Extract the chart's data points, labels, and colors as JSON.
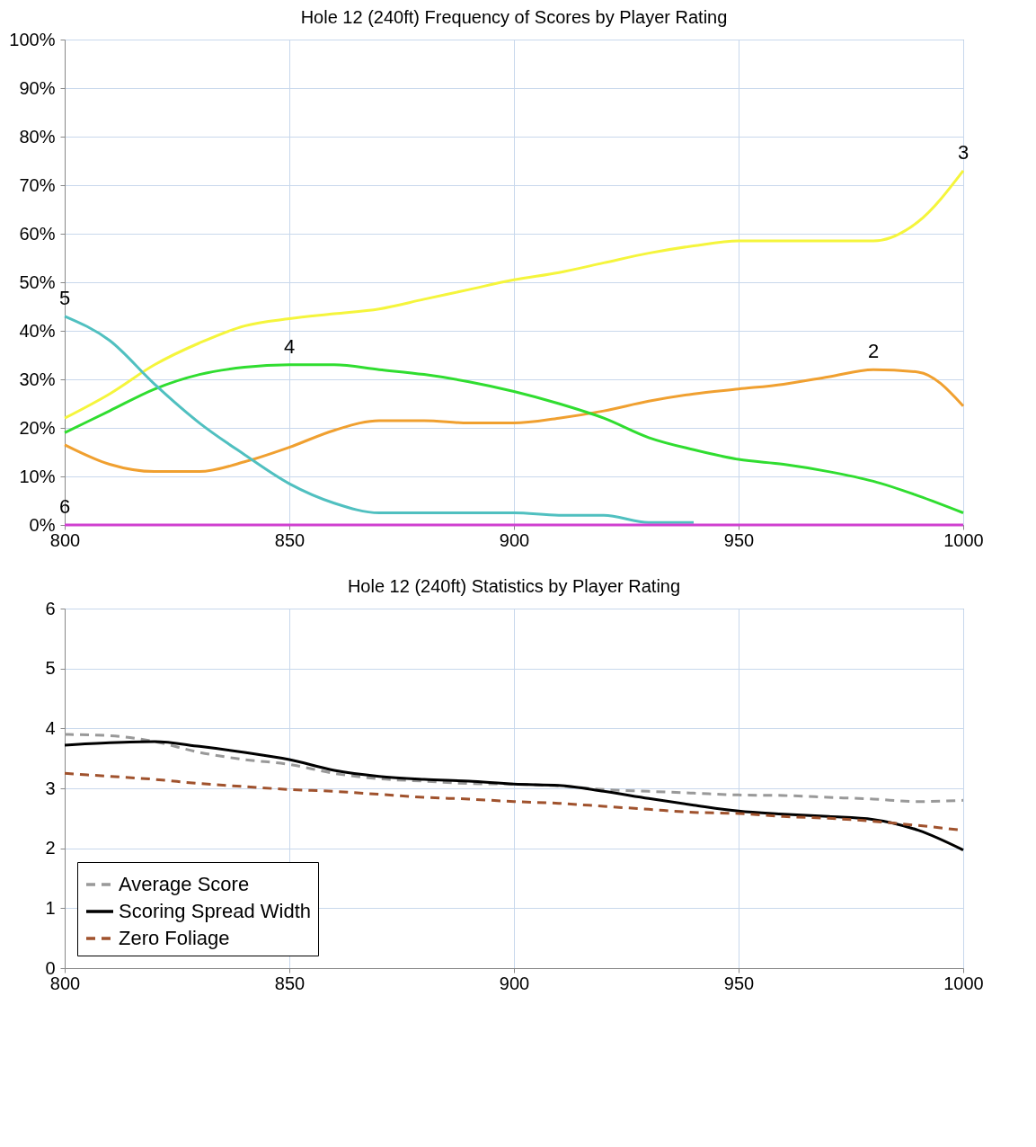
{
  "chart_data": [
    {
      "type": "line",
      "title": "Hole 12 (240ft) Frequency of Scores by Player Rating",
      "x": [
        800,
        810,
        820,
        830,
        840,
        850,
        860,
        870,
        880,
        890,
        900,
        910,
        920,
        930,
        940,
        950,
        960,
        970,
        980,
        990,
        1000
      ],
      "series": [
        {
          "name": "2",
          "color": "#f0a030",
          "values": [
            16.5,
            12.5,
            11,
            11,
            13,
            16,
            19.5,
            21.5,
            21.5,
            21,
            21,
            22,
            23.5,
            25.5,
            27,
            28,
            29,
            30.5,
            32,
            31.5,
            24.5
          ]
        },
        {
          "name": "3",
          "color": "#f5f53c",
          "values": [
            22,
            27,
            33,
            37.5,
            41,
            42.5,
            43.5,
            44.5,
            46.5,
            48.5,
            50.5,
            52,
            54,
            56,
            57.5,
            58.5,
            58.5,
            58.5,
            58.5,
            62.5,
            73
          ]
        },
        {
          "name": "4",
          "color": "#30dd30",
          "values": [
            19,
            23.5,
            28,
            31,
            32.5,
            33,
            33,
            32,
            31,
            29.5,
            27.5,
            25,
            22,
            18,
            15.5,
            13.5,
            12.5,
            11,
            9,
            6,
            2.5
          ]
        },
        {
          "name": "5",
          "color": "#50c0c0",
          "values": [
            43,
            38,
            29,
            21,
            14.5,
            8.5,
            4.5,
            2.5,
            2.5,
            2.5,
            2.5,
            2,
            2,
            0.5,
            0.5,
            null,
            null,
            null,
            null,
            null,
            null
          ]
        },
        {
          "name": "6",
          "color": "#d040d0",
          "values": [
            0,
            0,
            0,
            0,
            0,
            0,
            0,
            0,
            0,
            0,
            0,
            0,
            0,
            0,
            0,
            0,
            0,
            0,
            0,
            0,
            0
          ]
        }
      ],
      "xlim": [
        800,
        1000
      ],
      "xticks": [
        800,
        850,
        900,
        950,
        1000
      ],
      "ylim": [
        0,
        100
      ],
      "yticks": [
        {
          "value": 0,
          "label": "0%"
        },
        {
          "value": 10,
          "label": "10%"
        },
        {
          "value": 20,
          "label": "20%"
        },
        {
          "value": 30,
          "label": "30%"
        },
        {
          "value": 40,
          "label": "40%"
        },
        {
          "value": 50,
          "label": "50%"
        },
        {
          "value": 60,
          "label": "60%"
        },
        {
          "value": 70,
          "label": "70%"
        },
        {
          "value": 80,
          "label": "80%"
        },
        {
          "value": 90,
          "label": "90%"
        },
        {
          "value": 100,
          "label": "100%"
        }
      ],
      "grid": true,
      "legend": false
    },
    {
      "type": "line",
      "title": "Hole 12 (240ft) Statistics by Player Rating",
      "x": [
        800,
        810,
        820,
        830,
        840,
        850,
        860,
        870,
        880,
        890,
        900,
        910,
        920,
        930,
        940,
        950,
        960,
        970,
        980,
        990,
        1000
      ],
      "series": [
        {
          "name": "Average Score",
          "color": "#999999",
          "line_style": "dashed",
          "values": [
            3.9,
            3.88,
            3.78,
            3.6,
            3.48,
            3.4,
            3.25,
            3.16,
            3.12,
            3.08,
            3.07,
            3.04,
            2.98,
            2.95,
            2.92,
            2.89,
            2.88,
            2.85,
            2.82,
            2.78,
            2.8
          ]
        },
        {
          "name": "Scoring Spread Width",
          "color": "#000000",
          "line_style": "solid",
          "values": [
            3.72,
            3.76,
            3.78,
            3.7,
            3.6,
            3.48,
            3.3,
            3.2,
            3.15,
            3.12,
            3.07,
            3.05,
            2.95,
            2.83,
            2.72,
            2.62,
            2.57,
            2.53,
            2.48,
            2.3,
            1.97
          ]
        },
        {
          "name": "Zero Foliage",
          "color": "#a0522d",
          "line_style": "dashed",
          "values": [
            3.25,
            3.2,
            3.15,
            3.08,
            3.03,
            2.98,
            2.95,
            2.9,
            2.85,
            2.82,
            2.78,
            2.75,
            2.7,
            2.65,
            2.6,
            2.58,
            2.53,
            2.5,
            2.45,
            2.38,
            2.3
          ]
        }
      ],
      "xlim": [
        800,
        1000
      ],
      "xticks": [
        800,
        850,
        900,
        950,
        1000
      ],
      "ylim": [
        0,
        6
      ],
      "yticks": [
        0,
        1,
        2,
        3,
        4,
        5,
        6
      ],
      "grid": true,
      "legend": "bottom left"
    }
  ]
}
